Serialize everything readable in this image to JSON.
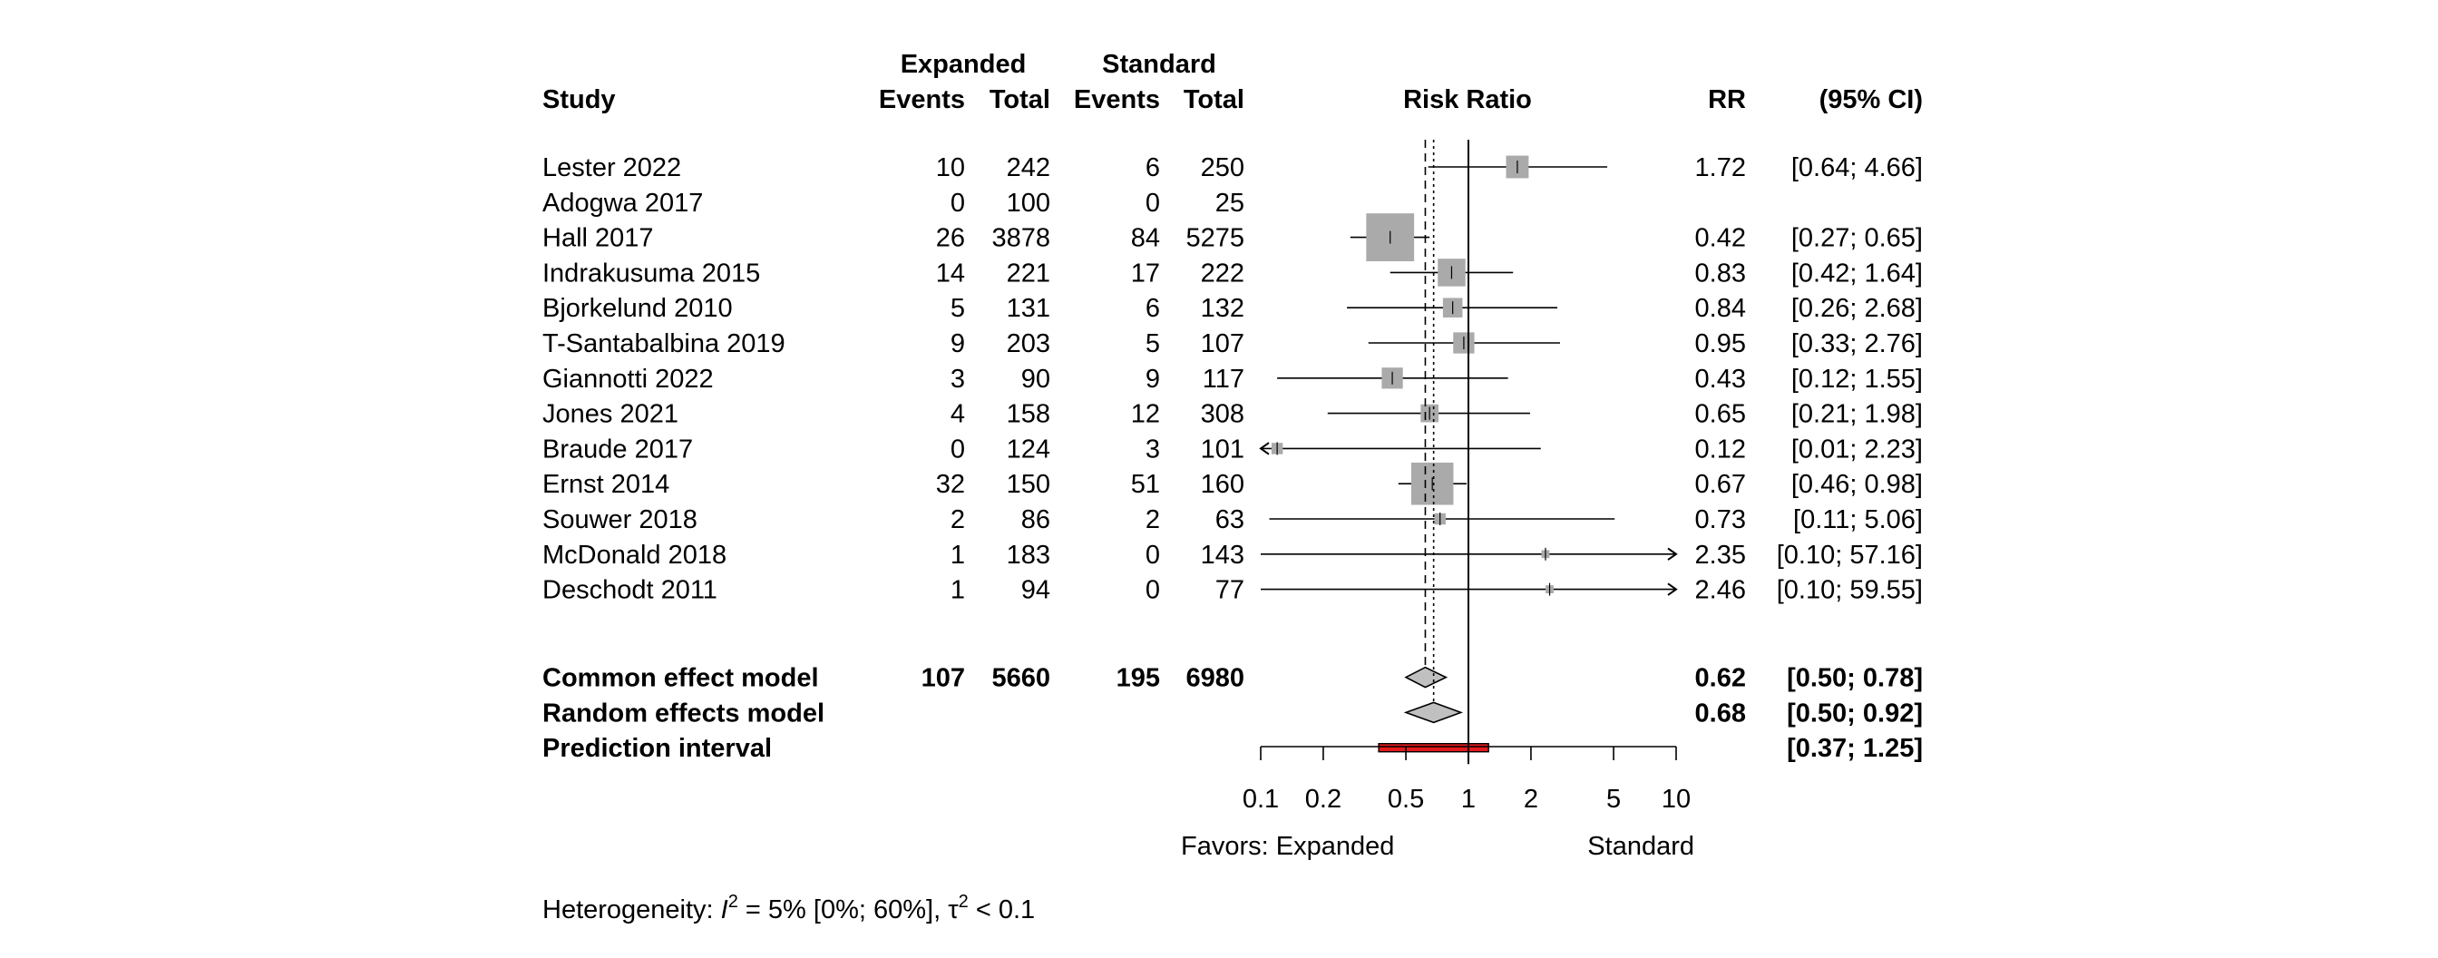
{
  "chart_data": {
    "type": "forest",
    "columns": {
      "study": "Study",
      "group1": "Expanded",
      "group2": "Standard",
      "events": "Events",
      "total": "Total",
      "plot": "Risk Ratio",
      "rr": "RR",
      "ci": "(95% CI)"
    },
    "studies": [
      {
        "name": "Lester 2022",
        "e1": "10",
        "n1": "242",
        "e2": "6",
        "n2": "250",
        "rr": 1.72,
        "lo": 0.64,
        "hi": 4.66,
        "w": 0.08,
        "rr_text": "1.72",
        "ci_text": "[0.64;  4.66]"
      },
      {
        "name": "Adogwa 2017",
        "e1": "0",
        "n1": "100",
        "e2": "0",
        "n2": "25",
        "rr": null,
        "lo": null,
        "hi": null,
        "w": 0,
        "rr_text": "",
        "ci_text": ""
      },
      {
        "name": "Hall 2017",
        "e1": "26",
        "n1": "3878",
        "e2": "84",
        "n2": "5275",
        "rr": 0.42,
        "lo": 0.27,
        "hi": 0.65,
        "w": 0.36,
        "rr_text": "0.42",
        "ci_text": "[0.27;  0.65]"
      },
      {
        "name": "Indrakusuma 2015",
        "e1": "14",
        "n1": "221",
        "e2": "17",
        "n2": "222",
        "rr": 0.83,
        "lo": 0.42,
        "hi": 1.64,
        "w": 0.12,
        "rr_text": "0.83",
        "ci_text": "[0.42;  1.64]"
      },
      {
        "name": "Bjorkelund 2010",
        "e1": "5",
        "n1": "131",
        "e2": "6",
        "n2": "132",
        "rr": 0.84,
        "lo": 0.26,
        "hi": 2.68,
        "w": 0.06,
        "rr_text": "0.84",
        "ci_text": "[0.26;  2.68]"
      },
      {
        "name": "T-Santabalbina 2019",
        "e1": "9",
        "n1": "203",
        "e2": "5",
        "n2": "107",
        "rr": 0.95,
        "lo": 0.33,
        "hi": 2.76,
        "w": 0.07,
        "rr_text": "0.95",
        "ci_text": "[0.33;  2.76]"
      },
      {
        "name": "Giannotti 2022",
        "e1": "3",
        "n1": "90",
        "e2": "9",
        "n2": "117",
        "rr": 0.43,
        "lo": 0.12,
        "hi": 1.55,
        "w": 0.07,
        "rr_text": "0.43",
        "ci_text": "[0.12;  1.55]"
      },
      {
        "name": "Jones 2021",
        "e1": "4",
        "n1": "158",
        "e2": "12",
        "n2": "308",
        "rr": 0.65,
        "lo": 0.21,
        "hi": 1.98,
        "w": 0.05,
        "rr_text": "0.65",
        "ci_text": "[0.21;  1.98]"
      },
      {
        "name": "Braude 2017",
        "e1": "0",
        "n1": "124",
        "e2": "3",
        "n2": "101",
        "rr": 0.12,
        "lo": 0.01,
        "hi": 2.23,
        "w": 0.02,
        "rr_text": "0.12",
        "ci_text": "[0.01;  2.23]"
      },
      {
        "name": "Ernst 2014",
        "e1": "32",
        "n1": "150",
        "e2": "51",
        "n2": "160",
        "rr": 0.67,
        "lo": 0.46,
        "hi": 0.98,
        "w": 0.28,
        "rr_text": "0.67",
        "ci_text": "[0.46;  0.98]"
      },
      {
        "name": "Souwer 2018",
        "e1": "2",
        "n1": "86",
        "e2": "2",
        "n2": "63",
        "rr": 0.73,
        "lo": 0.11,
        "hi": 5.06,
        "w": 0.02,
        "rr_text": "0.73",
        "ci_text": "[0.11;  5.06]"
      },
      {
        "name": "McDonald 2018",
        "e1": "1",
        "n1": "183",
        "e2": "0",
        "n2": "143",
        "rr": 2.35,
        "lo": 0.1,
        "hi": 57.16,
        "w": 0.01,
        "rr_text": "2.35",
        "ci_text": "[0.10; 57.16]"
      },
      {
        "name": "Deschodt 2011",
        "e1": "1",
        "n1": "94",
        "e2": "0",
        "n2": "77",
        "rr": 2.46,
        "lo": 0.1,
        "hi": 59.55,
        "w": 0.01,
        "rr_text": "2.46",
        "ci_text": "[0.10; 59.55]"
      }
    ],
    "summary": [
      {
        "name": "Common effect model",
        "e1": "107",
        "n1": "5660",
        "e2": "195",
        "n2": "6980",
        "rr": 0.62,
        "lo": 0.5,
        "hi": 0.78,
        "rr_text": "0.62",
        "ci_text": "[0.50;  0.78]"
      },
      {
        "name": "Random effects model",
        "e1": "",
        "n1": "",
        "e2": "",
        "n2": "",
        "rr": 0.68,
        "lo": 0.5,
        "hi": 0.92,
        "rr_text": "0.68",
        "ci_text": "[0.50;  0.92]"
      }
    ],
    "prediction": {
      "name": "Prediction interval",
      "lo": 0.37,
      "hi": 1.25,
      "ci_text": "[0.37;  1.25]"
    },
    "axis": {
      "scale": "log",
      "xlim": [
        0.1,
        10
      ],
      "ticks": [
        0.1,
        0.2,
        0.5,
        1,
        2,
        5,
        10
      ],
      "tick_labels": [
        "0.1",
        "0.2",
        "0.5",
        "1",
        "2",
        "5",
        "10"
      ],
      "null_line": 1,
      "label_left": "Favors: Expanded",
      "label_right": "Standard"
    },
    "heterogeneity": {
      "prefix": "Heterogeneity: ",
      "i2_symbol": "I",
      "i2_text": " = 5% [0%; 60%], ",
      "tau_symbol": "τ",
      "tau_text": " < 0.1"
    },
    "colors": {
      "square": "#aaaaaa",
      "diamond": "#c0c0c0",
      "prediction": "#e41a1c",
      "line": "#000000"
    }
  }
}
